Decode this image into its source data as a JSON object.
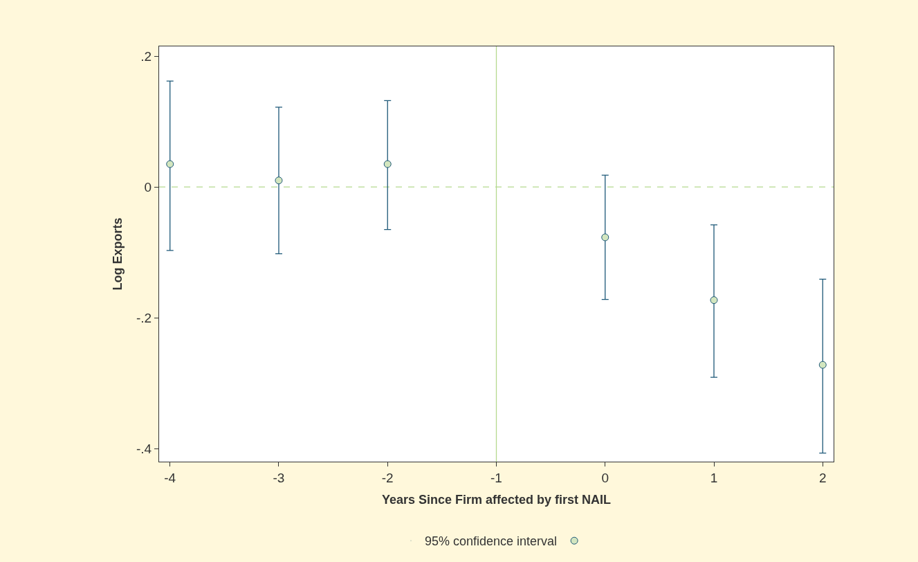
{
  "chart_data": {
    "type": "scatter",
    "xlabel": "Years Since Firm affected by first NAIL",
    "ylabel": "Log Exports",
    "x": [
      -4,
      -3,
      -2,
      0,
      1,
      2
    ],
    "series": [
      {
        "name": "95% confidence interval",
        "color": "#1d5878",
        "values": [
          0.035,
          0.01,
          0.035,
          -0.077,
          -0.173,
          -0.272
        ],
        "errors": [
          [
            -0.097,
            0.162
          ],
          [
            -0.102,
            0.122
          ],
          [
            -0.065,
            0.132
          ],
          [
            -0.172,
            0.018
          ],
          [
            -0.291,
            -0.058
          ],
          [
            -0.407,
            -0.141
          ]
        ]
      }
    ],
    "marker": "circle",
    "xlim": [
      -4.1,
      2.1
    ],
    "xticks": [
      -4,
      -3,
      -2,
      -1,
      0,
      1,
      2
    ],
    "ylim": [
      -0.42,
      0.215
    ],
    "yticks": [
      {
        "value": 0.2,
        "label": ".2"
      },
      0,
      {
        "value": -0.2,
        "label": "-.2"
      },
      {
        "value": -0.4,
        "label": "-.4"
      }
    ],
    "ref_lines": [
      {
        "axis": "x",
        "value": -1,
        "label": null,
        "color": "#b5d98f",
        "line_style": "solid"
      },
      {
        "axis": "y",
        "value": 0,
        "label": null,
        "color": "#b5d98f",
        "line_style": "dashed"
      }
    ],
    "grid": false,
    "legend": "bottom"
  }
}
